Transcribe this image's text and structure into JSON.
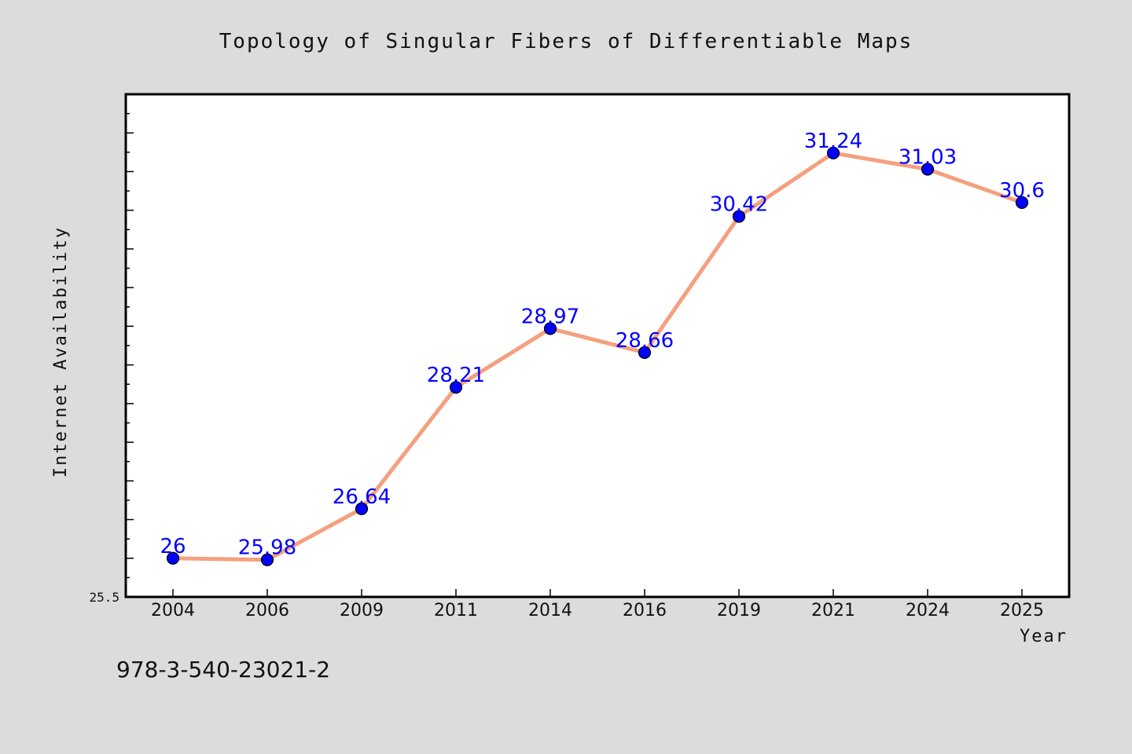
{
  "chart_data": {
    "type": "line",
    "title": "Topology of Singular Fibers of Differentiable Maps",
    "xlabel": "Year",
    "ylabel": "Internet Availability",
    "categories": [
      "2004",
      "2006",
      "2009",
      "2011",
      "2014",
      "2016",
      "2019",
      "2021",
      "2024",
      "2025"
    ],
    "series": [
      {
        "values": [
          26,
          25.98,
          26.64,
          28.21,
          28.97,
          28.66,
          30.42,
          31.24,
          31.03,
          30.6
        ],
        "labels": [
          "26",
          "25.98",
          "26.64",
          "28.21",
          "28.97",
          "28.66",
          "30.42",
          "31.24",
          "31.03",
          "30.6"
        ]
      }
    ],
    "ylim": [
      25.5,
      32.0
    ],
    "y_tick_labels": [
      "25.5"
    ],
    "grid": false,
    "line_color": "#f4a07e",
    "marker_color": "#0000ff",
    "label_color": "#0000ff"
  },
  "footer": {
    "isbn": "978-3-540-23021-2"
  }
}
